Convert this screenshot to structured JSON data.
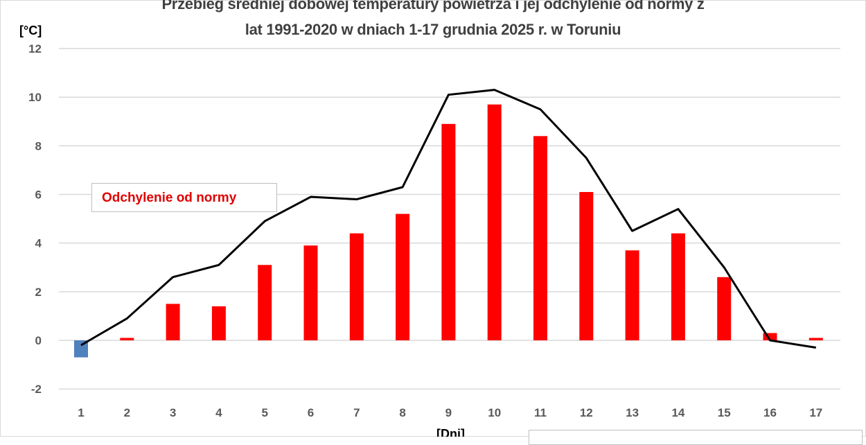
{
  "chart_data": {
    "type": "bar+line",
    "title_lines": [
      "Przebieg średniej dobowej temperatury powietrza i jej odchylenie od normy z",
      "lat 1991-2020 w dniach 1-17 grudnia 2025 r. w Toruniu"
    ],
    "ylabel": "[°C]",
    "xlabel": "[Dni]",
    "ylim": [
      -2,
      12
    ],
    "yticks": [
      -2,
      0,
      2,
      4,
      6,
      8,
      10,
      12
    ],
    "grid": true,
    "categories": [
      "1",
      "2",
      "3",
      "4",
      "5",
      "6",
      "7",
      "8",
      "9",
      "10",
      "11",
      "12",
      "13",
      "14",
      "15",
      "16",
      "17"
    ],
    "annotation": "Odchylenie od normy",
    "series": [
      {
        "type": "bar",
        "values": [
          -0.7,
          0.1,
          1.5,
          1.4,
          3.1,
          3.9,
          4.4,
          5.2,
          8.9,
          9.7,
          8.4,
          6.1,
          3.7,
          4.4,
          2.6,
          0.3,
          0.1
        ],
        "color_positive": "#ff0000",
        "color_negative": "#4f81bd"
      },
      {
        "type": "line",
        "values": [
          -0.2,
          0.9,
          2.6,
          3.1,
          4.9,
          5.9,
          5.8,
          6.3,
          10.1,
          10.3,
          9.5,
          7.5,
          4.5,
          5.4,
          3.0,
          0.0,
          -0.3
        ],
        "color": "#000000"
      }
    ]
  }
}
